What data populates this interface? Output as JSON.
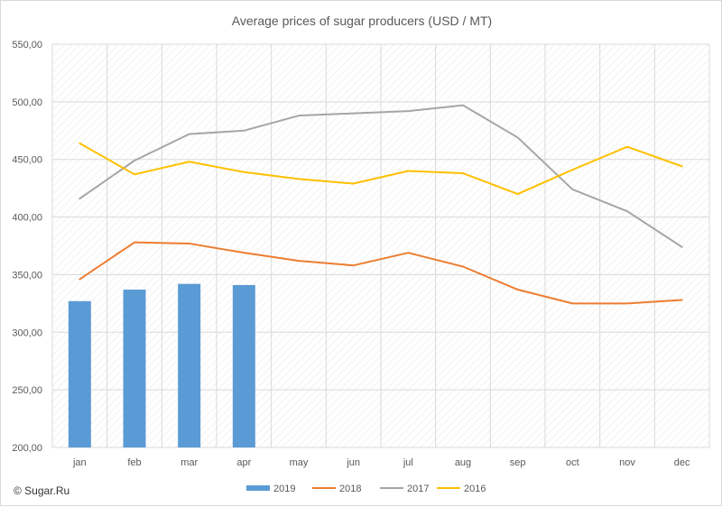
{
  "chart_data": {
    "type": "bar+line",
    "title": "Average prices of sugar producers (USD / MT)",
    "categories": [
      "jan",
      "feb",
      "mar",
      "apr",
      "may",
      "jun",
      "jul",
      "aug",
      "sep",
      "oct",
      "nov",
      "dec"
    ],
    "ylim": [
      200,
      550
    ],
    "yticks": [
      200,
      250,
      300,
      350,
      400,
      450,
      500,
      550
    ],
    "ytick_labels": [
      "200,00",
      "250,00",
      "300,00",
      "350,00",
      "400,00",
      "450,00",
      "500,00",
      "550,00"
    ],
    "grid": true,
    "legend_position": "bottom",
    "series": [
      {
        "name": "2019",
        "kind": "bar",
        "color": "#5b9bd5",
        "values": [
          327,
          337,
          342,
          341,
          null,
          null,
          null,
          null,
          null,
          null,
          null,
          null
        ]
      },
      {
        "name": "2018",
        "kind": "line",
        "color": "#ed7d31",
        "values": [
          346,
          378,
          377,
          369,
          362,
          358,
          369,
          357,
          337,
          325,
          325,
          328
        ]
      },
      {
        "name": "2017",
        "kind": "line",
        "color": "#a5a5a5",
        "values": [
          416,
          449,
          472,
          475,
          488,
          490,
          492,
          497,
          469,
          424,
          405,
          374
        ]
      },
      {
        "name": "2016",
        "kind": "line",
        "color": "#ffc000",
        "values": [
          464,
          437,
          448,
          439,
          433,
          429,
          440,
          438,
          420,
          441,
          461,
          444
        ]
      }
    ]
  },
  "credit": "© Sugar.Ru"
}
